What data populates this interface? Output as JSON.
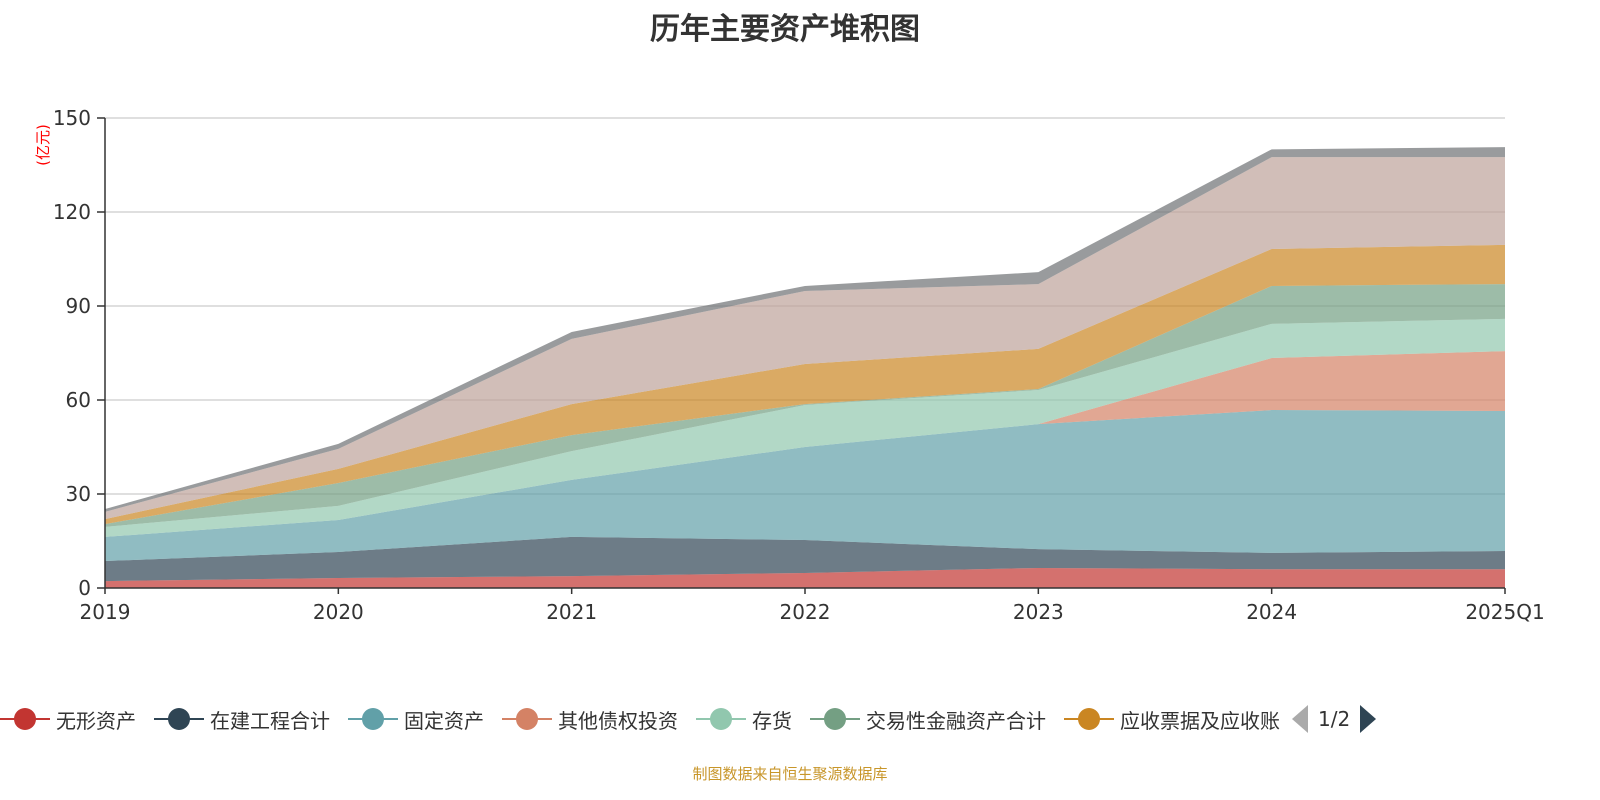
{
  "title": "历年主要资产堆积图",
  "source": "制图数据来自恒生聚源数据库",
  "legend_pager": "1/2",
  "chart_data": {
    "type": "area",
    "stacked": true,
    "title": "历年主要资产堆积图",
    "ylabel": "(亿元)",
    "xlabel": "",
    "ylim": [
      0,
      150
    ],
    "yticks": [
      "0",
      "30",
      "60",
      "90",
      "120",
      "150"
    ],
    "categories": [
      "2019",
      "2020",
      "2021",
      "2022",
      "2023",
      "2024",
      "2025Q1"
    ],
    "grid": true,
    "legend_placement": "bottom",
    "series": [
      {
        "name": "无形资产",
        "color": "#c23531",
        "values": [
          2.2,
          3.2,
          3.8,
          4.8,
          6.4,
          6.0,
          6.0
        ]
      },
      {
        "name": "在建工程合计",
        "color": "#2f4554",
        "values": [
          6.4,
          8.3,
          12.5,
          10.5,
          6.0,
          5.2,
          5.8
        ]
      },
      {
        "name": "固定资产",
        "color": "#61a0a8",
        "values": [
          7.7,
          10.2,
          18.2,
          29.7,
          39.9,
          45.6,
          44.7
        ]
      },
      {
        "name": "其他债权投资",
        "color": "#d48265",
        "values": [
          0,
          0,
          0,
          0,
          0,
          16.6,
          19.1
        ]
      },
      {
        "name": "存货",
        "color": "#91c7ae",
        "values": [
          3.2,
          4.5,
          9.2,
          13.4,
          10.9,
          10.9,
          10.3
        ]
      },
      {
        "name": "交易性金融资产合计",
        "color": "#749f83",
        "values": [
          0.9,
          7.3,
          5.1,
          0.3,
          0.3,
          12.1,
          11.1
        ]
      },
      {
        "name": "应收票据及应收账",
        "color": "#ca8622",
        "values": [
          1.6,
          4.5,
          9.9,
          12.8,
          12.8,
          11.8,
          12.5
        ]
      },
      {
        "name": "",
        "color": "#bda29a",
        "values": [
          2.3,
          6.4,
          20.8,
          23.3,
          20.7,
          29.3,
          28.0
        ]
      },
      {
        "name": "",
        "color": "#6e7074",
        "values": [
          0.9,
          1.6,
          2.2,
          1.6,
          3.8,
          2.5,
          3.2
        ]
      }
    ]
  }
}
